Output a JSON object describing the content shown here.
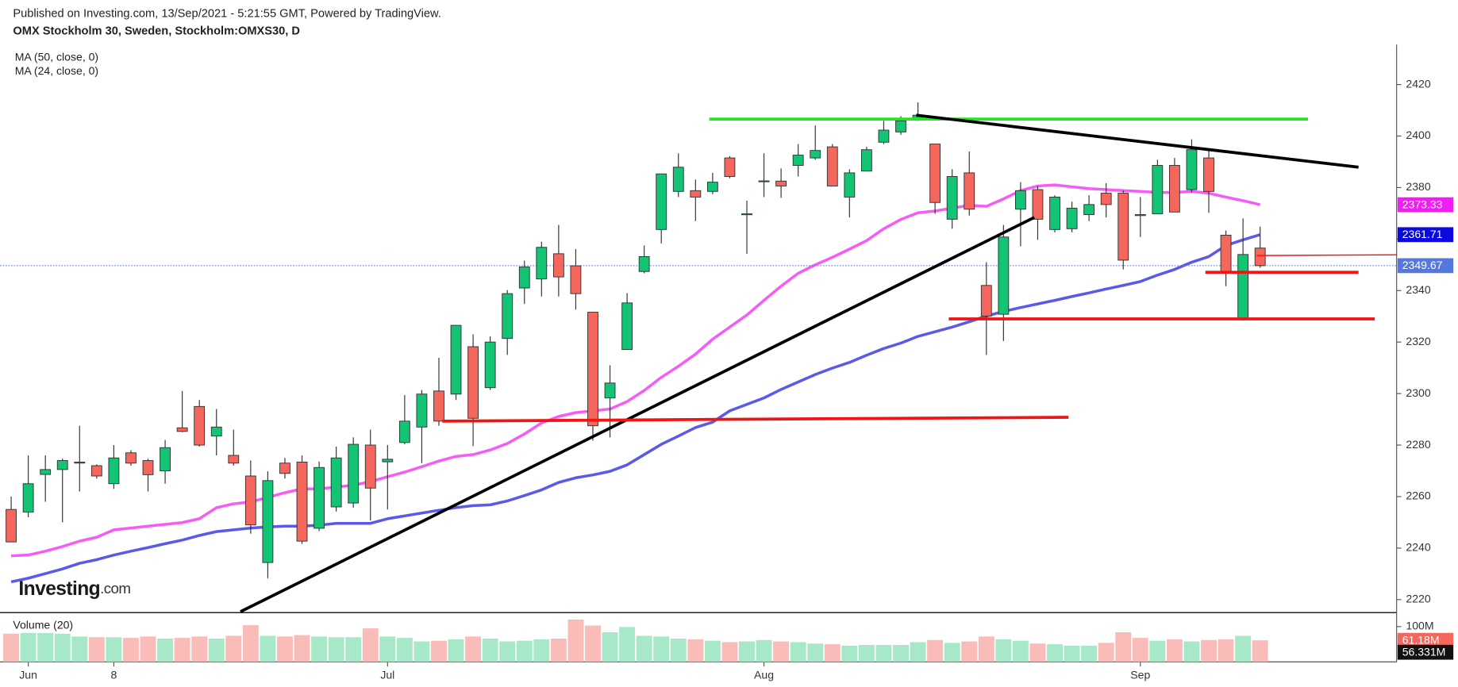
{
  "chart_data": {
    "type": "candlestick",
    "title": "Published on Investing.com, 13/Sep/2021 - 5:21:55 GMT, Powered by TradingView.",
    "subtitle": "OMX Stockholm 30, Sweden, Stockholm:OMXS30, D",
    "categories": [
      null,
      "Jun",
      null,
      null,
      null,
      null,
      "8",
      null,
      null,
      null,
      null,
      null,
      null,
      null,
      null,
      null,
      null,
      null,
      null,
      null,
      null,
      null,
      "Jul",
      null,
      null,
      null,
      null,
      null,
      null,
      null,
      null,
      null,
      null,
      null,
      null,
      null,
      null,
      null,
      null,
      null,
      null,
      null,
      null,
      null,
      "Aug",
      null,
      null,
      null,
      null,
      null,
      null,
      null,
      null,
      null,
      null,
      null,
      null,
      null,
      null,
      null,
      null,
      null,
      null,
      null,
      null,
      null,
      "Sep",
      null,
      null,
      null,
      null,
      null,
      null,
      null
    ],
    "open": [
      2255,
      2254,
      2268.6,
      2270.5,
      2273,
      2272,
      2265,
      2277,
      2274,
      2270,
      2286.7,
      2295,
      2283.5,
      2276,
      2268,
      2234.4,
      2273,
      2273.4,
      2247.7,
      2256,
      2257.5,
      2280,
      2273.5,
      2281,
      2287,
      2301,
      2299.8,
      2318.2,
      2302.3,
      2321.4,
      2341,
      2344.5,
      2354.3,
      2349.6,
      2331.6,
      2298.3,
      2317.1,
      2347.4,
      2363.7,
      2378.5,
      2378.8,
      2378.5,
      2391.5,
      2369.5,
      2382.5,
      2382.5,
      2388.6,
      2391.5,
      2395.8,
      2376.3,
      2386.4,
      2397.6,
      2401.6,
      2406.6,
      2396.9,
      2367.7,
      2385.7,
      2342,
      2330.8,
      2371.6,
      2379.2,
      2363.7,
      2364,
      2369.5,
      2377.8,
      2377.8,
      2369.5,
      2369.8,
      2388.6,
      2379.2,
      2391.5,
      2361.5,
      2329,
      2356.5
    ],
    "high": [
      2260,
      2276,
      2276,
      2274.7,
      2287.5,
      2272.5,
      2280,
      2278,
      2274.7,
      2282,
      2301,
      2297.5,
      2294,
      2286,
      2274,
      2269.8,
      2275,
      2276,
      2273.6,
      2279.4,
      2283,
      2286,
      2280,
      2299.4,
      2301.4,
      2313.9,
      2326.5,
      2323,
      2322.2,
      2340.2,
      2351.6,
      2359,
      2365.5,
      2356.1,
      2331.6,
      2311,
      2339,
      2357.5,
      2385.3,
      2393.3,
      2383.1,
      2385.7,
      2392.2,
      2374.9,
      2393.3,
      2387.4,
      2396.9,
      2404.1,
      2396.9,
      2387.1,
      2395.8,
      2405.9,
      2407.7,
      2413.1,
      2396.9,
      2387.1,
      2394,
      2351,
      2365.5,
      2382.1,
      2380.6,
      2377,
      2374.5,
      2377,
      2381.7,
      2378.8,
      2376.3,
      2390.8,
      2391.5,
      2398.7,
      2394.7,
      2363.3,
      2368,
      2364.8
    ],
    "low": [
      2242.4,
      2252,
      2258,
      2250,
      2262,
      2267,
      2263,
      2272,
      2262,
      2265,
      2285,
      2279.4,
      2276,
      2272,
      2245.6,
      2228.3,
      2267,
      2241.6,
      2246.6,
      2254.2,
      2255.7,
      2250.7,
      2255,
      2280.3,
      2273,
      2287.5,
      2297.5,
      2279.6,
      2301.4,
      2315,
      2334.8,
      2337.7,
      2337.7,
      2332.6,
      2281.7,
      2283,
      2317.1,
      2346.7,
      2358.3,
      2376.3,
      2367,
      2377.4,
      2383.6,
      2354.3,
      2376.3,
      2376,
      2384.3,
      2390.8,
      2380.6,
      2368.4,
      2386.4,
      2396.9,
      2400.5,
      2405.9,
      2369.8,
      2364,
      2369.1,
      2315,
      2320.4,
      2357.2,
      2359.7,
      2362.6,
      2362.6,
      2367,
      2368.4,
      2348.2,
      2360.8,
      2369.8,
      2370.5,
      2378.1,
      2370.2,
      2341.7,
      2328.3,
      2348.9
    ],
    "close": [
      2242.4,
      2265,
      2270.5,
      2274,
      2273.4,
      2268,
      2275,
      2273,
      2268.5,
      2279,
      2285.3,
      2280,
      2287,
      2273,
      2249,
      2266.2,
      2269,
      2242.7,
      2271.3,
      2275,
      2280.3,
      2263.3,
      2274.5,
      2289.3,
      2299.8,
      2289.3,
      2326.5,
      2290.4,
      2320,
      2338.8,
      2349.2,
      2356.8,
      2345.3,
      2338.8,
      2287.5,
      2304.1,
      2335.2,
      2353.2,
      2385.3,
      2387.9,
      2376.3,
      2382.1,
      2384.3,
      2369.8,
      2382.6,
      2380.6,
      2392.6,
      2394.4,
      2380.6,
      2385.7,
      2394.7,
      2402.3,
      2405.9,
      2408.1,
      2374.2,
      2384.3,
      2371.6,
      2330.1,
      2360.8,
      2378.8,
      2367.7,
      2376.3,
      2372,
      2373.4,
      2373.4,
      2351.8,
      2369.1,
      2388.6,
      2370.5,
      2394.7,
      2378.5,
      2347.4,
      2354,
      2349.67
    ],
    "up_color": "#12c474",
    "down_color": "#f5675d",
    "ylim": [
      2215.3,
      2435.5
    ],
    "yticks": [
      2220,
      2240,
      2260,
      2280,
      2300,
      2320,
      2340,
      2360,
      2380,
      2400,
      2420
    ],
    "grid": false,
    "moving_averages": [
      {
        "name": "MA (50, close, 0)",
        "color": "#5a5ae8",
        "tag_color": "#0a0ae0",
        "values": [
          2226.9,
          2228.3,
          2230.1,
          2231.9,
          2234.1,
          2235.5,
          2237.3,
          2238.8,
          2240.2,
          2241.7,
          2243.1,
          2244.9,
          2246.4,
          2247.1,
          2247.8,
          2248.2,
          2248.5,
          2248.5,
          2248.9,
          2249.6,
          2249.6,
          2249.6,
          2251.4,
          2252.5,
          2253.6,
          2254.7,
          2255.7,
          2256.5,
          2256.8,
          2258.3,
          2260.4,
          2262.6,
          2265.5,
          2267.3,
          2268.4,
          2269.8,
          2272.3,
          2276.3,
          2280.3,
          2283.5,
          2286.8,
          2288.9,
          2293.3,
          2295.8,
          2298.3,
          2301.6,
          2304.5,
          2307.4,
          2309.9,
          2312.1,
          2314.9,
          2317.5,
          2319.6,
          2322.2,
          2324,
          2325.8,
          2327.9,
          2330.1,
          2331.9,
          2333.4,
          2334.8,
          2336.2,
          2337.7,
          2339.1,
          2340.6,
          2342,
          2343.5,
          2346,
          2348.2,
          2351,
          2353.2,
          2357.5,
          2359.7,
          2361.71
        ]
      },
      {
        "name": "MA (24, close, 0)",
        "color": "#f55cf5",
        "tag_color": "#f01ef0",
        "values": [
          2237,
          2237.3,
          2238.8,
          2240.6,
          2242.7,
          2244.2,
          2247.1,
          2247.8,
          2248.5,
          2249.2,
          2249.9,
          2251.4,
          2255.7,
          2257.2,
          2257.9,
          2259.7,
          2261.5,
          2263,
          2263,
          2263.7,
          2264.4,
          2265.8,
          2267.7,
          2269.5,
          2271.6,
          2273.8,
          2275.6,
          2276.3,
          2278.1,
          2280.6,
          2284.3,
          2288.6,
          2291.1,
          2292.6,
          2293.3,
          2294,
          2296.9,
          2301.2,
          2306.3,
          2310.6,
          2315.3,
          2321.1,
          2325.8,
          2330.5,
          2336.2,
          2341.7,
          2346.7,
          2350,
          2352.9,
          2356.1,
          2359.4,
          2364,
          2367.6,
          2370.2,
          2370.9,
          2372,
          2373.1,
          2372.7,
          2375.6,
          2378.8,
          2380.6,
          2381,
          2380.3,
          2379.6,
          2379.2,
          2378.8,
          2378.5,
          2378.1,
          2378.1,
          2378.5,
          2377.8,
          2376.3,
          2374.9,
          2373.33
        ]
      }
    ],
    "close_tag_color": "#5577e0",
    "volume": {
      "name": "Volume (20)",
      "values": [
        80,
        82,
        82,
        80,
        72,
        70,
        70,
        68,
        72,
        66,
        68,
        72,
        66,
        74,
        104,
        74,
        72,
        76,
        72,
        70,
        70,
        95,
        72,
        68,
        58,
        60,
        64,
        72,
        66,
        58,
        60,
        64,
        66,
        120,
        103,
        84,
        99,
        74,
        72,
        66,
        64,
        60,
        56,
        58,
        62,
        58,
        56,
        52,
        50,
        46,
        48,
        48,
        48,
        56,
        62,
        54,
        58,
        72,
        64,
        60,
        52,
        50,
        46,
        46,
        54,
        84,
        68,
        60,
        64,
        58,
        62,
        64,
        74,
        61.18
      ],
      "up_color": "#a6e8c8",
      "down_color": "#f9bcb8",
      "ylim": [
        0,
        137
      ],
      "yticks": [
        {
          "value": 100,
          "label": "100M"
        }
      ],
      "last_label": "61.18M",
      "ma": {
        "value": 56.331,
        "label": "56.331M"
      }
    },
    "drawings": [
      {
        "color": "#22e822",
        "x": [
          40.8,
          75.8
        ],
        "y": [
          2406.6,
          2406.6
        ]
      },
      {
        "color": "#000000",
        "x": [
          52.9,
          78.75
        ],
        "y": [
          2408.1,
          2387.9
        ]
      },
      {
        "color": "#000000",
        "x": [
          13.4,
          59.8
        ],
        "y": [
          2215.3,
          2368.4
        ]
      },
      {
        "color": "#f01414",
        "x": [
          25.2,
          61.8
        ],
        "y": [
          2289.3,
          2290.8
        ]
      },
      {
        "color": "#f01414",
        "x": [
          54.8,
          79.7
        ],
        "y": [
          2329,
          2329
        ]
      },
      {
        "color": "#f01414",
        "x": [
          69.8,
          78.75
        ],
        "y": [
          2347.1,
          2347.1
        ]
      },
      {
        "color": "#f01414",
        "x": [
          72.8,
          81
        ],
        "y": [
          2353.6,
          2353.9
        ]
      }
    ],
    "logo": {
      "main": "Investing",
      "suffix": ".com"
    }
  }
}
